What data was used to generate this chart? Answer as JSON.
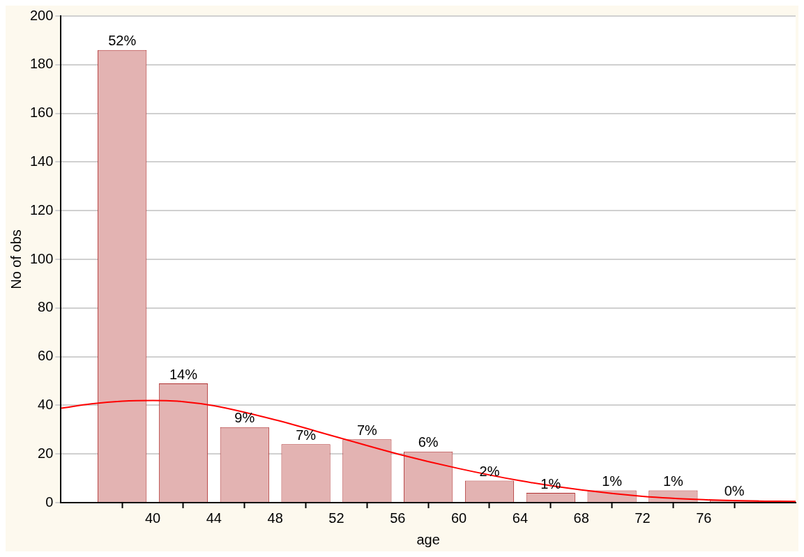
{
  "chart_data": {
    "type": "histogram",
    "xlabel": "age",
    "ylabel": "No of obs",
    "bins": [
      36,
      40,
      44,
      48,
      52,
      56,
      60,
      64,
      68,
      72,
      76,
      80
    ],
    "values": [
      186,
      49,
      31,
      24,
      26,
      21,
      9,
      4,
      5,
      5,
      1
    ],
    "annotations": [
      {
        "text": "52%",
        "x": 38,
        "y": 186
      },
      {
        "text": "14%",
        "x": 42,
        "y": 49
      },
      {
        "text": "9%",
        "x": 46,
        "y": 31
      },
      {
        "text": "7%",
        "x": 50,
        "y": 24
      },
      {
        "text": "7%",
        "x": 54,
        "y": 26
      },
      {
        "text": "6%",
        "x": 58,
        "y": 21
      },
      {
        "text": "2%",
        "x": 62,
        "y": 9
      },
      {
        "text": "1%",
        "x": 66,
        "y": 4
      },
      {
        "text": "1%",
        "x": 70,
        "y": 5
      },
      {
        "text": "1%",
        "x": 74,
        "y": 5
      },
      {
        "text": "0%",
        "x": 78,
        "y": 1
      }
    ],
    "color": "#e3b3b2",
    "series": [
      {
        "type": "line",
        "color": "#ff0000",
        "x": [
          34,
          36,
          38,
          40,
          42,
          44,
          48,
          52,
          56,
          60,
          64,
          68,
          72,
          76,
          80,
          82
        ],
        "values": [
          38.8,
          40.6,
          41.7,
          42,
          41.5,
          39.8,
          34,
          27,
          20,
          14,
          9,
          5.2,
          2.6,
          1.2,
          0.6,
          0.5
        ]
      }
    ],
    "xlim": [
      34,
      82
    ],
    "xticks": [
      40,
      44,
      48,
      52,
      56,
      60,
      64,
      68,
      72,
      76
    ],
    "ylim": [
      0,
      200
    ],
    "yticks": [
      0,
      20,
      40,
      60,
      80,
      100,
      120,
      140,
      160,
      180,
      200
    ],
    "grid": "y",
    "legend": false
  }
}
